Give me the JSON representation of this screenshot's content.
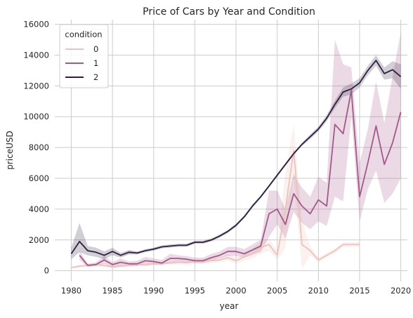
{
  "chart_data": {
    "type": "line",
    "title": "Price of Cars by Year and Condition",
    "xlabel": "year",
    "ylabel": "priceUSD",
    "xlim": [
      1978,
      2020.8
    ],
    "ylim": [
      -700,
      16300
    ],
    "xticks": [
      1980,
      1985,
      1990,
      1995,
      2000,
      2005,
      2010,
      2015,
      2020
    ],
    "yticks": [
      0,
      2000,
      4000,
      6000,
      8000,
      10000,
      12000,
      14000,
      16000
    ],
    "grid": true,
    "legend": {
      "title": "condition",
      "position": "top-left"
    },
    "series": [
      {
        "name": "0",
        "color": "#ecc2bc",
        "points": [
          [
            1980,
            200
          ],
          [
            1981,
            300
          ],
          [
            1982,
            350
          ],
          [
            1983,
            380
          ],
          [
            1984,
            350
          ],
          [
            1985,
            250
          ],
          [
            1986,
            300
          ],
          [
            1987,
            350
          ],
          [
            1988,
            400
          ],
          [
            1989,
            380
          ],
          [
            1990,
            450
          ],
          [
            1991,
            480
          ],
          [
            1992,
            500
          ],
          [
            1993,
            550
          ],
          [
            1994,
            520
          ],
          [
            1995,
            600
          ],
          [
            1996,
            580
          ],
          [
            1997,
            650
          ],
          [
            1998,
            700
          ],
          [
            1999,
            850
          ],
          [
            2000,
            650
          ],
          [
            2001,
            900
          ],
          [
            2002,
            1100
          ],
          [
            2003,
            1500
          ],
          [
            2004,
            1700
          ],
          [
            2005,
            1000
          ],
          [
            2006,
            4000
          ],
          [
            2007,
            7800
          ],
          [
            2008,
            1700
          ],
          [
            2009,
            1300
          ],
          [
            2010,
            700
          ],
          [
            2011,
            1000
          ],
          [
            2012,
            1300
          ],
          [
            2013,
            1700
          ],
          [
            2014,
            1700
          ],
          [
            2015,
            1700
          ]
        ],
        "band": [
          [
            1980,
            150,
            250
          ],
          [
            1981,
            200,
            400
          ],
          [
            1982,
            250,
            450
          ],
          [
            1983,
            280,
            480
          ],
          [
            1984,
            250,
            450
          ],
          [
            1985,
            150,
            350
          ],
          [
            1986,
            200,
            400
          ],
          [
            1987,
            250,
            450
          ],
          [
            1988,
            300,
            500
          ],
          [
            1989,
            280,
            480
          ],
          [
            1990,
            350,
            550
          ],
          [
            1991,
            380,
            580
          ],
          [
            1992,
            400,
            600
          ],
          [
            1993,
            400,
            700
          ],
          [
            1994,
            380,
            660
          ],
          [
            1995,
            450,
            750
          ],
          [
            1996,
            430,
            730
          ],
          [
            1997,
            500,
            800
          ],
          [
            1998,
            550,
            850
          ],
          [
            1999,
            650,
            1050
          ],
          [
            2000,
            450,
            850
          ],
          [
            2001,
            650,
            1150
          ],
          [
            2002,
            800,
            1400
          ],
          [
            2003,
            1100,
            1900
          ],
          [
            2004,
            1300,
            2100
          ],
          [
            2005,
            700,
            1300
          ],
          [
            2006,
            1500,
            6500
          ],
          [
            2007,
            6000,
            9500
          ],
          [
            2008,
            100,
            3300
          ],
          [
            2009,
            1000,
            1600
          ],
          [
            2010,
            550,
            850
          ],
          [
            2011,
            850,
            1150
          ],
          [
            2012,
            1150,
            1450
          ],
          [
            2013,
            1550,
            1850
          ],
          [
            2014,
            1550,
            1850
          ],
          [
            2015,
            1550,
            1850
          ]
        ]
      },
      {
        "name": "1",
        "color": "#a3588a",
        "points": [
          [
            1981,
            1000
          ],
          [
            1982,
            350
          ],
          [
            1983,
            400
          ],
          [
            1984,
            700
          ],
          [
            1985,
            400
          ],
          [
            1986,
            550
          ],
          [
            1987,
            450
          ],
          [
            1988,
            450
          ],
          [
            1989,
            650
          ],
          [
            1990,
            600
          ],
          [
            1991,
            500
          ],
          [
            1992,
            800
          ],
          [
            1993,
            800
          ],
          [
            1994,
            750
          ],
          [
            1995,
            650
          ],
          [
            1996,
            650
          ],
          [
            1997,
            850
          ],
          [
            1998,
            1000
          ],
          [
            1999,
            1250
          ],
          [
            2000,
            1250
          ],
          [
            2001,
            1100
          ],
          [
            2002,
            1350
          ],
          [
            2003,
            1600
          ],
          [
            2004,
            3700
          ],
          [
            2005,
            4000
          ],
          [
            2006,
            3000
          ],
          [
            2007,
            5000
          ],
          [
            2008,
            4200
          ],
          [
            2009,
            3700
          ],
          [
            2010,
            4600
          ],
          [
            2011,
            4200
          ],
          [
            2012,
            9500
          ],
          [
            2013,
            8900
          ],
          [
            2014,
            11700
          ],
          [
            2015,
            4800
          ],
          [
            2016,
            7000
          ],
          [
            2017,
            9400
          ],
          [
            2018,
            6900
          ],
          [
            2019,
            8300
          ],
          [
            2020,
            10300
          ]
        ],
        "band": [
          [
            1981,
            700,
            1300
          ],
          [
            1982,
            250,
            450
          ],
          [
            1983,
            300,
            550
          ],
          [
            1984,
            450,
            950
          ],
          [
            1985,
            250,
            550
          ],
          [
            1986,
            350,
            800
          ],
          [
            1987,
            300,
            600
          ],
          [
            1988,
            300,
            650
          ],
          [
            1989,
            450,
            900
          ],
          [
            1990,
            400,
            800
          ],
          [
            1991,
            350,
            700
          ],
          [
            1992,
            550,
            1100
          ],
          [
            1993,
            600,
            1000
          ],
          [
            1994,
            550,
            950
          ],
          [
            1995,
            500,
            850
          ],
          [
            1996,
            500,
            850
          ],
          [
            1997,
            650,
            1100
          ],
          [
            1998,
            800,
            1250
          ],
          [
            1999,
            950,
            1550
          ],
          [
            2000,
            950,
            1550
          ],
          [
            2001,
            850,
            1400
          ],
          [
            2002,
            1050,
            1700
          ],
          [
            2003,
            1200,
            2000
          ],
          [
            2004,
            2200,
            5200
          ],
          [
            2005,
            3000,
            5200
          ],
          [
            2006,
            2100,
            4000
          ],
          [
            2007,
            3800,
            6300
          ],
          [
            2008,
            3100,
            5400
          ],
          [
            2009,
            2700,
            4800
          ],
          [
            2010,
            3200,
            6100
          ],
          [
            2011,
            2900,
            5700
          ],
          [
            2012,
            4800,
            15000
          ],
          [
            2013,
            4500,
            13400
          ],
          [
            2014,
            10000,
            13200
          ],
          [
            2015,
            3200,
            7000
          ],
          [
            2016,
            5300,
            9200
          ],
          [
            2017,
            6500,
            12300
          ],
          [
            2018,
            4400,
            9600
          ],
          [
            2019,
            5000,
            12600
          ],
          [
            2020,
            6000,
            15500
          ]
        ]
      },
      {
        "name": "2",
        "color": "#2d1e3e",
        "points": [
          [
            1980,
            1100
          ],
          [
            1981,
            1900
          ],
          [
            1982,
            1300
          ],
          [
            1983,
            1200
          ],
          [
            1984,
            1000
          ],
          [
            1985,
            1250
          ],
          [
            1986,
            1000
          ],
          [
            1987,
            1200
          ],
          [
            1988,
            1150
          ],
          [
            1989,
            1300
          ],
          [
            1990,
            1400
          ],
          [
            1991,
            1550
          ],
          [
            1992,
            1600
          ],
          [
            1993,
            1650
          ],
          [
            1994,
            1650
          ],
          [
            1995,
            1850
          ],
          [
            1996,
            1850
          ],
          [
            1997,
            2000
          ],
          [
            1998,
            2250
          ],
          [
            1999,
            2550
          ],
          [
            2000,
            2950
          ],
          [
            2001,
            3500
          ],
          [
            2002,
            4200
          ],
          [
            2003,
            4800
          ],
          [
            2004,
            5500
          ],
          [
            2005,
            6200
          ],
          [
            2006,
            6900
          ],
          [
            2007,
            7600
          ],
          [
            2008,
            8200
          ],
          [
            2009,
            8700
          ],
          [
            2010,
            9200
          ],
          [
            2011,
            9900
          ],
          [
            2012,
            10800
          ],
          [
            2013,
            11600
          ],
          [
            2014,
            11800
          ],
          [
            2015,
            12200
          ],
          [
            2016,
            13000
          ],
          [
            2017,
            13650
          ],
          [
            2018,
            12800
          ],
          [
            2019,
            13050
          ],
          [
            2020,
            12600
          ]
        ],
        "band": [
          [
            1980,
            750,
            1500
          ],
          [
            1981,
            1200,
            3100
          ],
          [
            1982,
            1000,
            1600
          ],
          [
            1983,
            900,
            1500
          ],
          [
            1984,
            750,
            1250
          ],
          [
            1985,
            1000,
            1500
          ],
          [
            1986,
            850,
            1150
          ],
          [
            1987,
            1050,
            1350
          ],
          [
            1988,
            1050,
            1250
          ],
          [
            1989,
            1200,
            1400
          ],
          [
            1990,
            1300,
            1500
          ],
          [
            1991,
            1450,
            1650
          ],
          [
            1992,
            1500,
            1700
          ],
          [
            1993,
            1550,
            1750
          ],
          [
            1994,
            1550,
            1750
          ],
          [
            1995,
            1750,
            1950
          ],
          [
            1996,
            1750,
            1950
          ],
          [
            1997,
            1900,
            2100
          ],
          [
            1998,
            2150,
            2350
          ],
          [
            1999,
            2450,
            2650
          ],
          [
            2000,
            2850,
            3050
          ],
          [
            2001,
            3400,
            3600
          ],
          [
            2002,
            4100,
            4300
          ],
          [
            2003,
            4700,
            4900
          ],
          [
            2004,
            5400,
            5600
          ],
          [
            2005,
            6100,
            6300
          ],
          [
            2006,
            6800,
            7000
          ],
          [
            2007,
            7500,
            7700
          ],
          [
            2008,
            8100,
            8300
          ],
          [
            2009,
            8550,
            8850
          ],
          [
            2010,
            9050,
            9350
          ],
          [
            2011,
            9700,
            10100
          ],
          [
            2012,
            10550,
            11050
          ],
          [
            2013,
            11300,
            11900
          ],
          [
            2014,
            11450,
            12150
          ],
          [
            2015,
            11900,
            12500
          ],
          [
            2016,
            12700,
            13300
          ],
          [
            2017,
            13300,
            14000
          ],
          [
            2018,
            12400,
            13200
          ],
          [
            2019,
            12500,
            13600
          ],
          [
            2020,
            11800,
            13400
          ]
        ]
      }
    ]
  }
}
